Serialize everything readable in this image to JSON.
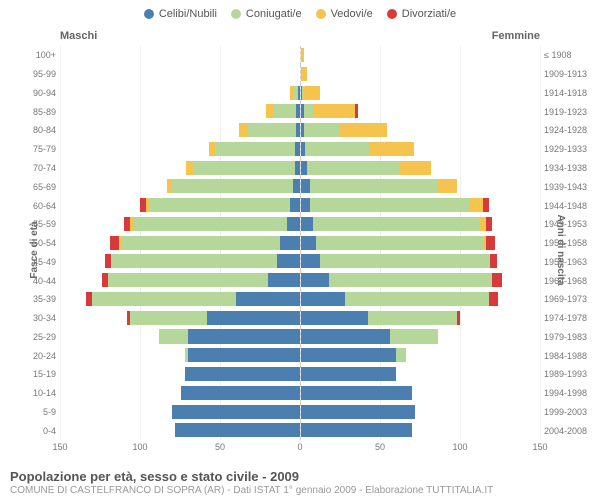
{
  "legend": [
    {
      "label": "Celibi/Nubili",
      "color": "#4a7fb0"
    },
    {
      "label": "Coniugati/e",
      "color": "#b5d89a"
    },
    {
      "label": "Vedovi/e",
      "color": "#f5c44e"
    },
    {
      "label": "Divorziati/e",
      "color": "#d63a3a"
    }
  ],
  "gender_left": "Maschi",
  "gender_right": "Femmine",
  "axis_left_title": "Fasce di età",
  "axis_right_title": "Anni di nascita",
  "x_ticks": [
    150,
    100,
    50,
    0,
    50,
    100,
    150
  ],
  "x_max": 150,
  "footer_title": "Popolazione per età, sesso e stato civile - 2009",
  "footer_sub": "COMUNE DI CASTELFRANCO DI SOPRA (AR) - Dati ISTAT 1° gennaio 2009 - Elaborazione TUTTITALIA.IT",
  "age_labels": [
    "100+",
    "95-99",
    "90-94",
    "85-89",
    "80-84",
    "75-79",
    "70-74",
    "65-69",
    "60-64",
    "55-59",
    "50-54",
    "45-49",
    "40-44",
    "35-39",
    "30-34",
    "25-29",
    "20-24",
    "15-19",
    "10-14",
    "5-9",
    "0-4"
  ],
  "birth_labels": [
    "≤ 1908",
    "1909-1913",
    "1914-1918",
    "1919-1923",
    "1924-1928",
    "1929-1933",
    "1934-1938",
    "1939-1943",
    "1944-1948",
    "1949-1953",
    "1954-1958",
    "1959-1963",
    "1964-1968",
    "1969-1973",
    "1974-1978",
    "1979-1983",
    "1984-1988",
    "1989-1993",
    "1994-1998",
    "1999-2003",
    "2004-2008"
  ],
  "rows": [
    {
      "m": {
        "c": 0,
        "g": 0,
        "v": 0,
        "d": 0
      },
      "f": {
        "c": 0,
        "g": 0,
        "v": 2,
        "d": 0
      }
    },
    {
      "m": {
        "c": 0,
        "g": 0,
        "v": 0,
        "d": 0
      },
      "f": {
        "c": 0,
        "g": 0,
        "v": 4,
        "d": 0
      }
    },
    {
      "m": {
        "c": 1,
        "g": 3,
        "v": 2,
        "d": 0
      },
      "f": {
        "c": 1,
        "g": 1,
        "v": 10,
        "d": 0
      }
    },
    {
      "m": {
        "c": 2,
        "g": 14,
        "v": 5,
        "d": 0
      },
      "f": {
        "c": 2,
        "g": 6,
        "v": 26,
        "d": 2
      }
    },
    {
      "m": {
        "c": 2,
        "g": 30,
        "v": 6,
        "d": 0
      },
      "f": {
        "c": 2,
        "g": 22,
        "v": 30,
        "d": 0
      }
    },
    {
      "m": {
        "c": 3,
        "g": 50,
        "v": 4,
        "d": 0
      },
      "f": {
        "c": 3,
        "g": 40,
        "v": 28,
        "d": 0
      }
    },
    {
      "m": {
        "c": 3,
        "g": 64,
        "v": 4,
        "d": 0
      },
      "f": {
        "c": 4,
        "g": 58,
        "v": 20,
        "d": 0
      }
    },
    {
      "m": {
        "c": 4,
        "g": 76,
        "v": 3,
        "d": 0
      },
      "f": {
        "c": 6,
        "g": 80,
        "v": 12,
        "d": 0
      }
    },
    {
      "m": {
        "c": 6,
        "g": 88,
        "v": 2,
        "d": 4
      },
      "f": {
        "c": 6,
        "g": 100,
        "v": 8,
        "d": 4
      }
    },
    {
      "m": {
        "c": 8,
        "g": 96,
        "v": 2,
        "d": 4
      },
      "f": {
        "c": 8,
        "g": 104,
        "v": 4,
        "d": 4
      }
    },
    {
      "m": {
        "c": 12,
        "g": 100,
        "v": 1,
        "d": 6
      },
      "f": {
        "c": 10,
        "g": 104,
        "v": 2,
        "d": 6
      }
    },
    {
      "m": {
        "c": 14,
        "g": 104,
        "v": 0,
        "d": 4
      },
      "f": {
        "c": 12,
        "g": 106,
        "v": 1,
        "d": 4
      }
    },
    {
      "m": {
        "c": 20,
        "g": 100,
        "v": 0,
        "d": 4
      },
      "f": {
        "c": 18,
        "g": 102,
        "v": 0,
        "d": 6
      }
    },
    {
      "m": {
        "c": 40,
        "g": 90,
        "v": 0,
        "d": 4
      },
      "f": {
        "c": 28,
        "g": 90,
        "v": 0,
        "d": 6
      }
    },
    {
      "m": {
        "c": 58,
        "g": 48,
        "v": 0,
        "d": 2
      },
      "f": {
        "c": 42,
        "g": 56,
        "v": 0,
        "d": 2
      }
    },
    {
      "m": {
        "c": 70,
        "g": 18,
        "v": 0,
        "d": 0
      },
      "f": {
        "c": 56,
        "g": 30,
        "v": 0,
        "d": 0
      }
    },
    {
      "m": {
        "c": 70,
        "g": 2,
        "v": 0,
        "d": 0
      },
      "f": {
        "c": 60,
        "g": 6,
        "v": 0,
        "d": 0
      }
    },
    {
      "m": {
        "c": 72,
        "g": 0,
        "v": 0,
        "d": 0
      },
      "f": {
        "c": 60,
        "g": 0,
        "v": 0,
        "d": 0
      }
    },
    {
      "m": {
        "c": 74,
        "g": 0,
        "v": 0,
        "d": 0
      },
      "f": {
        "c": 70,
        "g": 0,
        "v": 0,
        "d": 0
      }
    },
    {
      "m": {
        "c": 80,
        "g": 0,
        "v": 0,
        "d": 0
      },
      "f": {
        "c": 72,
        "g": 0,
        "v": 0,
        "d": 0
      }
    },
    {
      "m": {
        "c": 78,
        "g": 0,
        "v": 0,
        "d": 0
      },
      "f": {
        "c": 70,
        "g": 0,
        "v": 0,
        "d": 0
      }
    }
  ]
}
